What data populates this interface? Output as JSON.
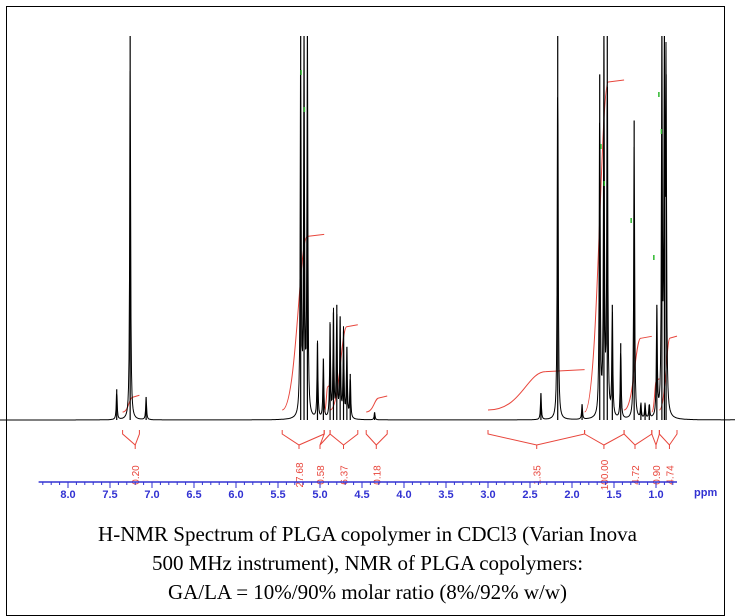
{
  "caption": {
    "line1": "H-NMR Spectrum of PLGA copolymer in CDCl3 (Varian Inova",
    "line2": "500 MHz instrument), NMR of PLGA copolymers:",
    "line3": "GA/LA = 10%/90% molar ratio (8%/92% w/w)"
  },
  "chart_data": {
    "type": "line",
    "title": "",
    "xlabel": "ppm",
    "ylabel": "",
    "xlim": [
      8.5,
      0.2
    ],
    "x_reversed": true,
    "x_ticks": [
      "8.0",
      "7.5",
      "7.0",
      "6.5",
      "6.0",
      "5.5",
      "5.0",
      "4.5",
      "4.0",
      "3.5",
      "3.0",
      "2.5",
      "2.0",
      "1.5",
      "1.0"
    ],
    "grid": false,
    "colors": {
      "spectrum": "#000000",
      "integral": "#e8463c",
      "axis": "#3232d2",
      "peak_marker": "#2db82d"
    },
    "peaks": [
      {
        "ppm": 7.42,
        "height": 0.08
      },
      {
        "ppm": 7.26,
        "height": 1.0
      },
      {
        "ppm": 7.07,
        "height": 0.06
      },
      {
        "ppm": 5.23,
        "height": 1.0
      },
      {
        "ppm": 5.19,
        "height": 1.0
      },
      {
        "ppm": 5.15,
        "height": 1.0
      },
      {
        "ppm": 5.03,
        "height": 0.2
      },
      {
        "ppm": 4.96,
        "height": 0.16
      },
      {
        "ppm": 4.88,
        "height": 0.25
      },
      {
        "ppm": 4.84,
        "height": 0.28
      },
      {
        "ppm": 4.8,
        "height": 0.3
      },
      {
        "ppm": 4.76,
        "height": 0.27
      },
      {
        "ppm": 4.72,
        "height": 0.23
      },
      {
        "ppm": 4.68,
        "height": 0.19
      },
      {
        "ppm": 4.64,
        "height": 0.12
      },
      {
        "ppm": 4.35,
        "height": 0.02
      },
      {
        "ppm": 2.37,
        "height": 0.07
      },
      {
        "ppm": 2.17,
        "height": 1.0
      },
      {
        "ppm": 1.88,
        "height": 0.04
      },
      {
        "ppm": 1.67,
        "height": 0.9
      },
      {
        "ppm": 1.62,
        "height": 1.0
      },
      {
        "ppm": 1.58,
        "height": 1.0
      },
      {
        "ppm": 1.52,
        "height": 0.3
      },
      {
        "ppm": 1.42,
        "height": 0.2
      },
      {
        "ppm": 1.26,
        "height": 0.78
      },
      {
        "ppm": 1.18,
        "height": 0.04
      },
      {
        "ppm": 1.13,
        "height": 0.04
      },
      {
        "ppm": 1.08,
        "height": 0.04
      },
      {
        "ppm": 0.99,
        "height": 0.3
      },
      {
        "ppm": 0.93,
        "height": 1.0
      },
      {
        "ppm": 0.9,
        "height": 1.0
      },
      {
        "ppm": 0.88,
        "height": 0.9
      },
      {
        "ppm": 0.0,
        "height": 0.04
      }
    ],
    "integrals": [
      {
        "from": 7.35,
        "to": 7.15,
        "value": "0.20",
        "label_ppm": 7.2
      },
      {
        "from": 5.45,
        "to": 4.95,
        "value": "27.68",
        "label_ppm": 5.25
      },
      {
        "from": 4.95,
        "to": 4.88,
        "value": "0.58",
        "label_ppm": 5.0
      },
      {
        "from": 4.88,
        "to": 4.55,
        "value": "6.37",
        "label_ppm": 4.72
      },
      {
        "from": 4.45,
        "to": 4.2,
        "value": "0.18",
        "label_ppm": 4.33
      },
      {
        "from": 3.0,
        "to": 1.85,
        "value": "1.35",
        "label_ppm": 2.42
      },
      {
        "from": 1.85,
        "to": 1.38,
        "value": "100.00",
        "label_ppm": 1.62
      },
      {
        "from": 1.38,
        "to": 1.05,
        "value": "4.72",
        "label_ppm": 1.25
      },
      {
        "from": 1.05,
        "to": 0.96,
        "value": "0.90",
        "label_ppm": 1.0
      },
      {
        "from": 0.96,
        "to": 0.75,
        "value": "4.74",
        "label_ppm": 0.84
      }
    ]
  }
}
